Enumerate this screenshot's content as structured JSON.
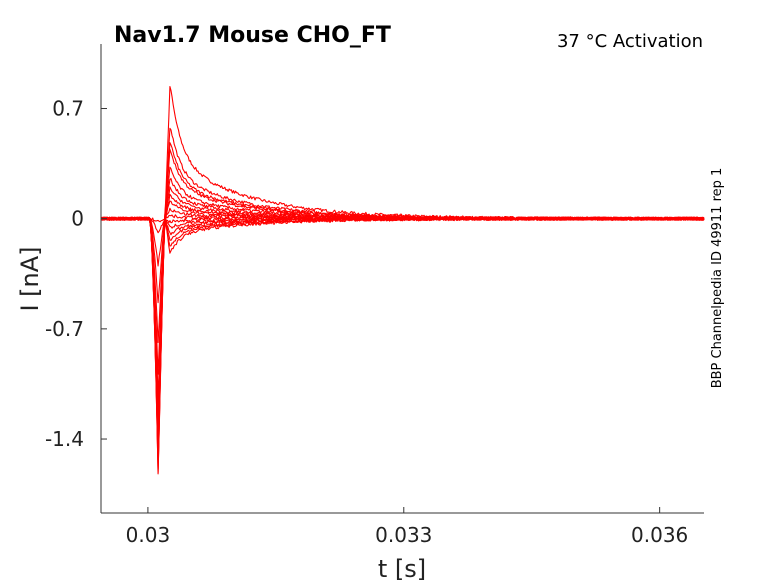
{
  "chart_data": {
    "type": "line",
    "title": "Nav1.7  Mouse  CHO_FT",
    "subtitle": "37 °C  Activation",
    "side_label": "BBP Channelpedia ID 49911 rep 1",
    "xlabel": "t [s]",
    "ylabel": "I [nA]",
    "xlim": [
      0.02945,
      0.03652
    ],
    "ylim": [
      -1.87,
      1.11
    ],
    "x_ticks": [
      0.03,
      0.033,
      0.036
    ],
    "x_tick_labels": [
      "0.03",
      "0.033",
      "0.036"
    ],
    "y_ticks": [
      0.7,
      0,
      -0.7,
      -1.4
    ],
    "y_tick_labels": [
      "0.7",
      "0",
      "-0.7",
      "-1.4"
    ],
    "grid": false,
    "line_color": "#ff0000",
    "trace_template": {
      "stim_on": 0.03002,
      "stim_off": 0.0302,
      "inward_peak_time": 0.03012,
      "outward_peak_time": 0.03026,
      "noise": 0.01
    },
    "series": [
      {
        "inward_peak": -0.02,
        "tail_peak": 0.86
      },
      {
        "inward_peak": -0.1,
        "tail_peak": 0.6
      },
      {
        "inward_peak": -0.3,
        "tail_peak": 0.5
      },
      {
        "inward_peak": -0.55,
        "tail_peak": 0.45
      },
      {
        "inward_peak": -0.8,
        "tail_peak": 0.33
      },
      {
        "inward_peak": -1.0,
        "tail_peak": 0.26
      },
      {
        "inward_peak": -1.15,
        "tail_peak": 0.2
      },
      {
        "inward_peak": -1.25,
        "tail_peak": 0.15
      },
      {
        "inward_peak": -1.35,
        "tail_peak": 0.11
      },
      {
        "inward_peak": -1.42,
        "tail_peak": 0.06
      },
      {
        "inward_peak": -1.48,
        "tail_peak": 0.02
      },
      {
        "inward_peak": -1.52,
        "tail_peak": -0.02
      },
      {
        "inward_peak": -1.55,
        "tail_peak": -0.06
      },
      {
        "inward_peak": -1.58,
        "tail_peak": -0.1
      },
      {
        "inward_peak": -1.61,
        "tail_peak": -0.14
      },
      {
        "inward_peak": -1.63,
        "tail_peak": -0.18
      },
      {
        "inward_peak": -1.65,
        "tail_peak": -0.22
      }
    ]
  }
}
